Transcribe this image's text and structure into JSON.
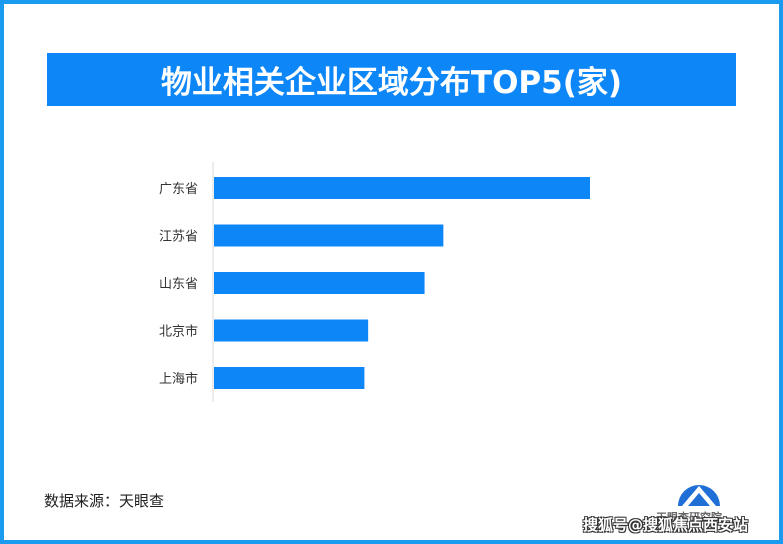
{
  "title": "物业相关企业区域分布TOP5(家)",
  "source_text": "数据来源：天眼查",
  "logo_caption": "天眼查研究院",
  "watermark": "搜狐号@搜狐焦点西安站",
  "colors": {
    "frame": "#1a9bf0",
    "banner": "#0d86f7",
    "bar": "#0d86f7"
  },
  "chart_data": {
    "type": "bar",
    "orientation": "horizontal",
    "categories": [
      "广东省",
      "江苏省",
      "山东省",
      "北京市",
      "上海市"
    ],
    "values": [
      100,
      61,
      56,
      41,
      40
    ],
    "title": "物业相关企业区域分布TOP5(家)",
    "xlabel": "",
    "ylabel": "",
    "grid": false,
    "legend": "none"
  }
}
